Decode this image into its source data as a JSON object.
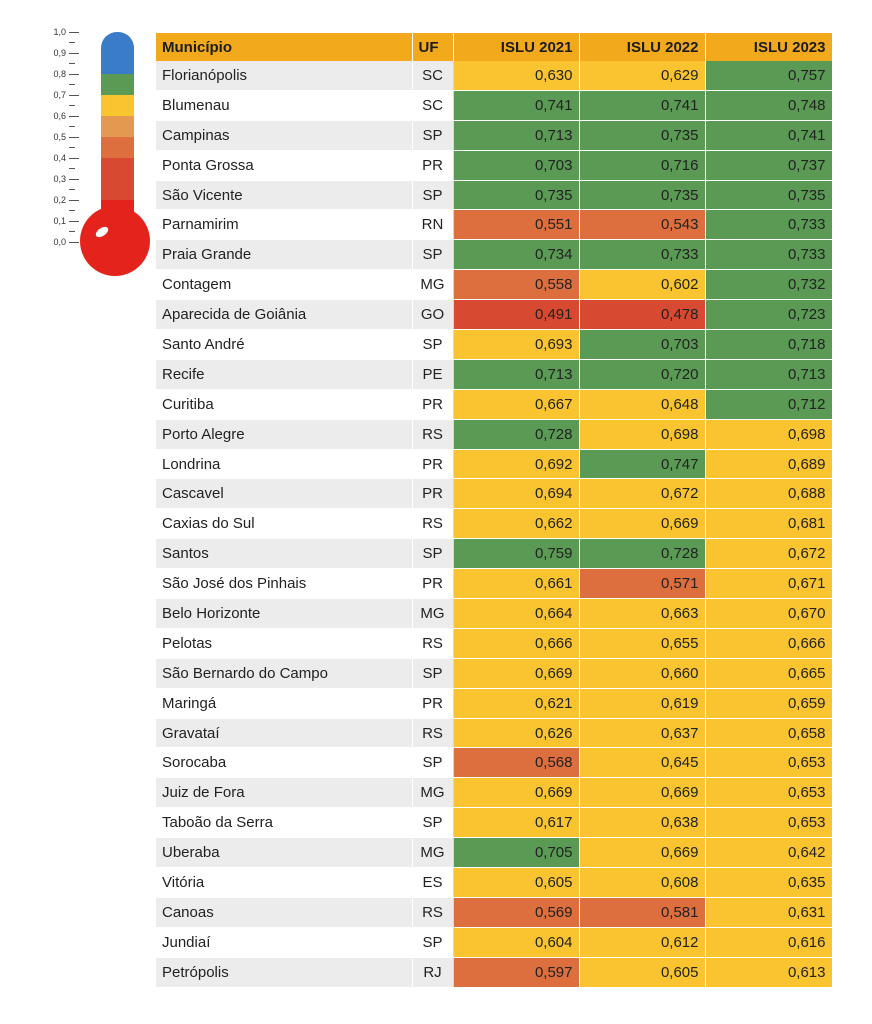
{
  "legend": {
    "scale_labels": [
      "1,0",
      "0,9",
      "0,8",
      "0,7",
      "0,6",
      "0,5",
      "0,4",
      "0,3",
      "0,2",
      "0,1",
      "0,0"
    ],
    "colors": {
      "blue": "#3b7cc8",
      "green": "#5a9a55",
      "yellow": "#f9c42f",
      "light_orange": "#e39a50",
      "orange": "#dd6e3d",
      "red_orange": "#d74a31",
      "red": "#e4241c"
    }
  },
  "chart_data": {
    "type": "table",
    "columns": [
      "Município",
      "UF",
      "ISLU 2021",
      "ISLU 2022",
      "ISLU 2023"
    ],
    "rows": [
      {
        "municipio": "Florianópolis",
        "uf": "SC",
        "v2021": "0,630",
        "v2022": "0,629",
        "v2023": "0,757"
      },
      {
        "municipio": "Blumenau",
        "uf": "SC",
        "v2021": "0,741",
        "v2022": "0,741",
        "v2023": "0,748"
      },
      {
        "municipio": "Campinas",
        "uf": "SP",
        "v2021": "0,713",
        "v2022": "0,735",
        "v2023": "0,741"
      },
      {
        "municipio": "Ponta Grossa",
        "uf": "PR",
        "v2021": "0,703",
        "v2022": "0,716",
        "v2023": "0,737"
      },
      {
        "municipio": "São Vicente",
        "uf": "SP",
        "v2021": "0,735",
        "v2022": "0,735",
        "v2023": "0,735"
      },
      {
        "municipio": "Parnamirim",
        "uf": "RN",
        "v2021": "0,551",
        "v2022": "0,543",
        "v2023": "0,733"
      },
      {
        "municipio": "Praia Grande",
        "uf": "SP",
        "v2021": "0,734",
        "v2022": "0,733",
        "v2023": "0,733"
      },
      {
        "municipio": "Contagem",
        "uf": "MG",
        "v2021": "0,558",
        "v2022": "0,602",
        "v2023": "0,732"
      },
      {
        "municipio": "Aparecida de Goiânia",
        "uf": "GO",
        "v2021": "0,491",
        "v2022": "0,478",
        "v2023": "0,723"
      },
      {
        "municipio": "Santo André",
        "uf": "SP",
        "v2021": "0,693",
        "v2022": "0,703",
        "v2023": "0,718"
      },
      {
        "municipio": "Recife",
        "uf": "PE",
        "v2021": "0,713",
        "v2022": "0,720",
        "v2023": "0,713"
      },
      {
        "municipio": "Curitiba",
        "uf": "PR",
        "v2021": "0,667",
        "v2022": "0,648",
        "v2023": "0,712"
      },
      {
        "municipio": "Porto Alegre",
        "uf": "RS",
        "v2021": "0,728",
        "v2022": "0,698",
        "v2023": "0,698"
      },
      {
        "municipio": "Londrina",
        "uf": "PR",
        "v2021": "0,692",
        "v2022": "0,747",
        "v2023": "0,689"
      },
      {
        "municipio": "Cascavel",
        "uf": "PR",
        "v2021": "0,694",
        "v2022": "0,672",
        "v2023": "0,688"
      },
      {
        "municipio": "Caxias do Sul",
        "uf": "RS",
        "v2021": "0,662",
        "v2022": "0,669",
        "v2023": "0,681"
      },
      {
        "municipio": "Santos",
        "uf": "SP",
        "v2021": "0,759",
        "v2022": "0,728",
        "v2023": "0,672"
      },
      {
        "municipio": "São José dos Pinhais",
        "uf": "PR",
        "v2021": "0,661",
        "v2022": "0,571",
        "v2023": "0,671"
      },
      {
        "municipio": "Belo Horizonte",
        "uf": "MG",
        "v2021": "0,664",
        "v2022": "0,663",
        "v2023": "0,670"
      },
      {
        "municipio": "Pelotas",
        "uf": "RS",
        "v2021": "0,666",
        "v2022": "0,655",
        "v2023": "0,666"
      },
      {
        "municipio": "São Bernardo do Campo",
        "uf": "SP",
        "v2021": "0,669",
        "v2022": "0,660",
        "v2023": "0,665"
      },
      {
        "municipio": "Maringá",
        "uf": "PR",
        "v2021": "0,621",
        "v2022": "0,619",
        "v2023": "0,659"
      },
      {
        "municipio": "Gravataí",
        "uf": "RS",
        "v2021": "0,626",
        "v2022": "0,637",
        "v2023": "0,658"
      },
      {
        "municipio": "Sorocaba",
        "uf": "SP",
        "v2021": "0,568",
        "v2022": "0,645",
        "v2023": "0,653"
      },
      {
        "municipio": "Juiz de Fora",
        "uf": "MG",
        "v2021": "0,669",
        "v2022": "0,669",
        "v2023": "0,653"
      },
      {
        "municipio": "Taboão da Serra",
        "uf": "SP",
        "v2021": "0,617",
        "v2022": "0,638",
        "v2023": "0,653"
      },
      {
        "municipio": "Uberaba",
        "uf": "MG",
        "v2021": "0,705",
        "v2022": "0,669",
        "v2023": "0,642"
      },
      {
        "municipio": "Vitória",
        "uf": "ES",
        "v2021": "0,605",
        "v2022": "0,608",
        "v2023": "0,635"
      },
      {
        "municipio": "Canoas",
        "uf": "RS",
        "v2021": "0,569",
        "v2022": "0,581",
        "v2023": "0,631"
      },
      {
        "municipio": "Jundiaí",
        "uf": "SP",
        "v2021": "0,604",
        "v2022": "0,612",
        "v2023": "0,616"
      },
      {
        "municipio": "Petrópolis",
        "uf": "RJ",
        "v2021": "0,597",
        "v2022": "0,605",
        "v2023": "0,613"
      }
    ]
  }
}
